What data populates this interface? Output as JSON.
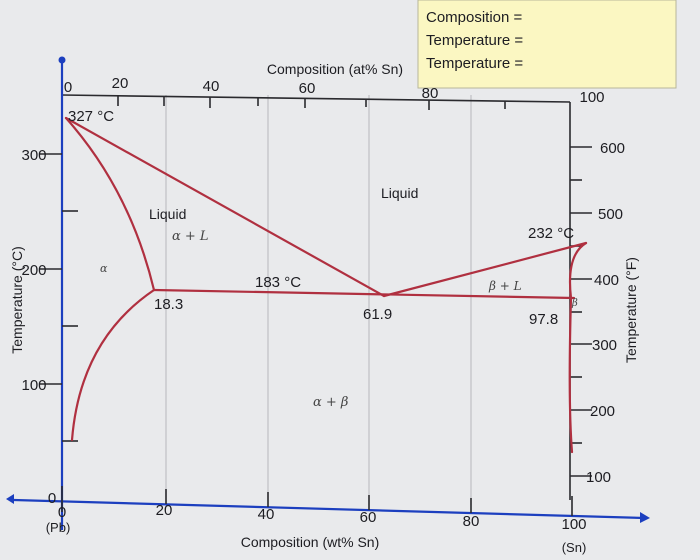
{
  "header_box": {
    "line1": "Composition =",
    "line2": "Temperature =",
    "line3": "Temperature ="
  },
  "top_axis": {
    "title": "Composition (at% Sn)",
    "ticks": [
      "0",
      "20",
      "40",
      "60",
      "80",
      "100"
    ]
  },
  "bottom_axis": {
    "title": "Composition (wt% Sn)",
    "ticks": [
      "0",
      "20",
      "40",
      "60",
      "80",
      "100"
    ],
    "left_end": "(Pb)",
    "right_end": "(Sn)"
  },
  "left_axis": {
    "title": "Temperature (°C)",
    "ticks": [
      "0",
      "100",
      "200",
      "300"
    ]
  },
  "right_axis": {
    "title": "Temperature (°F)",
    "ticks": [
      "100",
      "200",
      "300",
      "400",
      "500",
      "600"
    ]
  },
  "annotations": {
    "pb_melt": "327 °C",
    "sn_melt": "232 °C",
    "eutectic_temp": "183 °C",
    "alpha_solubility": "18.3",
    "eutectic_comp": "61.9",
    "beta_solubility": "97.8"
  },
  "regions": {
    "liquid_top": "Liquid",
    "liquid_left": "Liquid",
    "alpha_plus_liquid": "α + L",
    "alpha": "α",
    "beta_plus_liquid": "β + L",
    "beta": "β",
    "alpha_plus_beta": "α + β"
  },
  "colors": {
    "phase_line": "#b03040",
    "axis_blue": "#1c3fbf"
  }
}
